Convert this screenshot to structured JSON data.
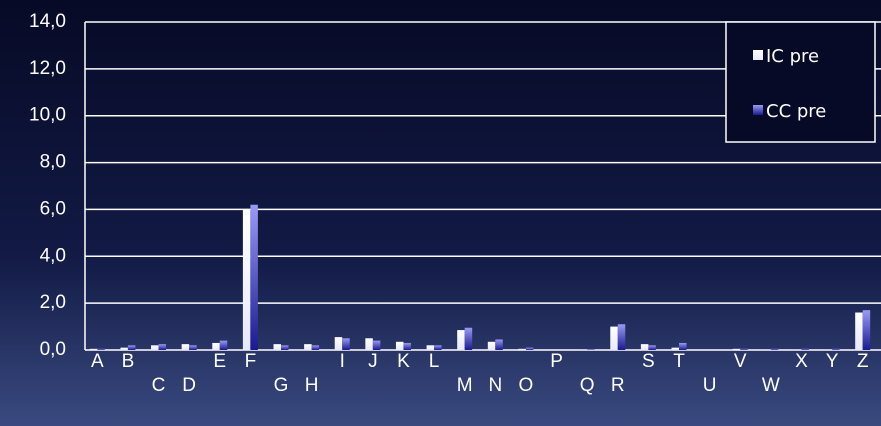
{
  "chart_data": {
    "type": "bar",
    "categories": [
      "A",
      "B",
      "C",
      "D",
      "E",
      "F",
      "G",
      "H",
      "I",
      "J",
      "K",
      "L",
      "M",
      "N",
      "O",
      "P",
      "Q",
      "R",
      "S",
      "T",
      "U",
      "V",
      "W",
      "X",
      "Y",
      "Z"
    ],
    "series": [
      {
        "name": "IC pre",
        "color": "#ffffff",
        "values": [
          0.05,
          0.1,
          0.2,
          0.25,
          0.3,
          6.0,
          0.25,
          0.25,
          0.55,
          0.5,
          0.35,
          0.2,
          0.85,
          0.35,
          0.05,
          0,
          0.02,
          1.0,
          0.25,
          0.1,
          0,
          0.05,
          0.02,
          0.02,
          0.02,
          1.6
        ]
      },
      {
        "name": "CC pre",
        "color": "#9a9af5",
        "values": [
          0.05,
          0.2,
          0.25,
          0.2,
          0.4,
          6.2,
          0.2,
          0.2,
          0.5,
          0.4,
          0.3,
          0.2,
          0.95,
          0.45,
          0.1,
          0,
          0.02,
          1.1,
          0.2,
          0.3,
          0,
          0.05,
          0.05,
          0.05,
          0.05,
          1.7
        ]
      }
    ],
    "ylim": [
      0,
      14
    ],
    "yticks": [
      {
        "value": 0,
        "label": "0,0"
      },
      {
        "value": 2,
        "label": "2,0"
      },
      {
        "value": 4,
        "label": "4,0"
      },
      {
        "value": 6,
        "label": "6,0"
      },
      {
        "value": 8,
        "label": "8,0"
      },
      {
        "value": 10,
        "label": "10,0"
      },
      {
        "value": 12,
        "label": "12,0"
      },
      {
        "value": 14,
        "label": "14,0"
      }
    ],
    "grid": true,
    "legend": "top-right"
  }
}
